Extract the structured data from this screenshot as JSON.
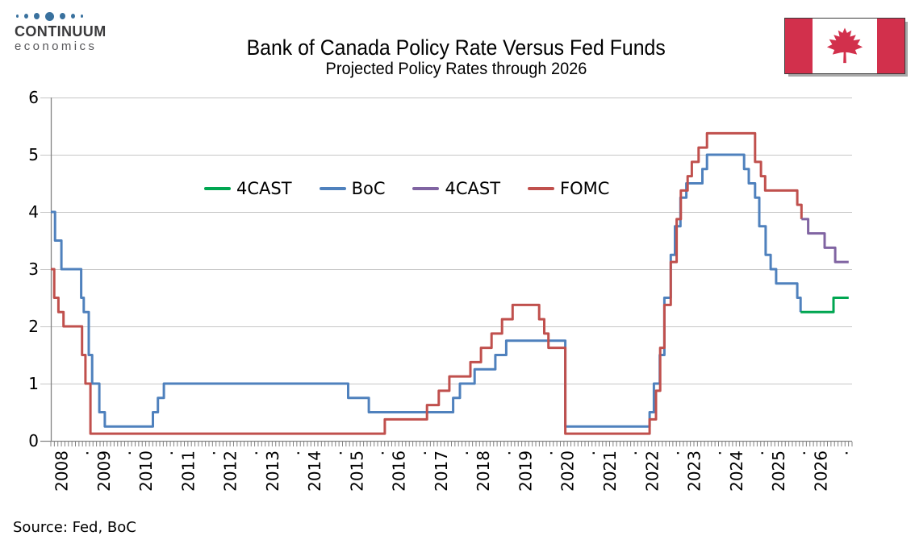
{
  "logo": {
    "name": "CONTINUUM",
    "tagline": "economics"
  },
  "header": {
    "title": "Bank of Canada Policy Rate Versus Fed Funds",
    "subtitle": "Projected Policy Rates through 2026"
  },
  "flag": {
    "country": "Canada"
  },
  "source_note": "Source: Fed, BoC",
  "chart_data": {
    "type": "line",
    "title": "Bank of Canada Policy Rate Versus Fed Funds",
    "subtitle": "Projected Policy Rates through 2026",
    "xlabel": "",
    "ylabel": "",
    "ylim": [
      0,
      6
    ],
    "yticks": [
      0,
      1,
      2,
      3,
      4,
      5,
      6
    ],
    "x_domain": [
      2008,
      2027
    ],
    "x_year_labels": [
      "2008",
      "2009",
      "2010",
      "2011",
      "2012",
      "2013",
      "2014",
      "2015",
      "2016",
      "2017",
      "2018",
      "2019",
      "2020",
      "2021",
      "2022",
      "2023",
      "2024",
      "2025",
      "2026"
    ],
    "x_minor_tick": "monthly",
    "grid": true,
    "legend_position": "inside-top-left",
    "legend": [
      {
        "label": "4CAST",
        "series": "boc_4cast",
        "color": "#00a651"
      },
      {
        "label": "BoC",
        "series": "boc",
        "color": "#4f81bd"
      },
      {
        "label": "4CAST",
        "series": "fomc_4cast",
        "color": "#8064a2"
      },
      {
        "label": "FOMC",
        "series": "fomc",
        "color": "#c0504d"
      }
    ],
    "series": [
      {
        "key": "boc",
        "name": "BoC",
        "color": "#4f81bd",
        "style": "step",
        "points": [
          [
            2008.0,
            4.0
          ],
          [
            2008.1,
            3.5
          ],
          [
            2008.25,
            3.0
          ],
          [
            2008.72,
            2.5
          ],
          [
            2008.78,
            2.25
          ],
          [
            2008.9,
            1.5
          ],
          [
            2008.98,
            1.0
          ],
          [
            2009.15,
            0.5
          ],
          [
            2009.28,
            0.25
          ],
          [
            2010.42,
            0.5
          ],
          [
            2010.54,
            0.75
          ],
          [
            2010.68,
            1.0
          ],
          [
            2015.05,
            0.75
          ],
          [
            2015.54,
            0.5
          ],
          [
            2017.54,
            0.75
          ],
          [
            2017.7,
            1.0
          ],
          [
            2018.05,
            1.25
          ],
          [
            2018.54,
            1.5
          ],
          [
            2018.8,
            1.75
          ],
          [
            2020.2,
            0.25
          ],
          [
            2022.2,
            0.5
          ],
          [
            2022.3,
            1.0
          ],
          [
            2022.44,
            1.5
          ],
          [
            2022.55,
            2.5
          ],
          [
            2022.7,
            3.25
          ],
          [
            2022.8,
            3.75
          ],
          [
            2022.93,
            4.25
          ],
          [
            2023.07,
            4.5
          ],
          [
            2023.45,
            4.75
          ],
          [
            2023.56,
            5.0
          ],
          [
            2024.44,
            4.75
          ],
          [
            2024.55,
            4.5
          ],
          [
            2024.7,
            4.25
          ],
          [
            2024.8,
            3.75
          ],
          [
            2024.95,
            3.25
          ],
          [
            2025.07,
            3.0
          ],
          [
            2025.2,
            2.75
          ],
          [
            2025.7,
            2.5
          ],
          [
            2025.78,
            2.25
          ]
        ]
      },
      {
        "key": "fomc",
        "name": "FOMC",
        "color": "#c0504d",
        "style": "step",
        "points": [
          [
            2008.0,
            3.0
          ],
          [
            2008.08,
            2.5
          ],
          [
            2008.18,
            2.25
          ],
          [
            2008.3,
            2.0
          ],
          [
            2008.74,
            1.5
          ],
          [
            2008.82,
            1.0
          ],
          [
            2008.94,
            0.125
          ],
          [
            2015.92,
            0.375
          ],
          [
            2016.92,
            0.625
          ],
          [
            2017.2,
            0.875
          ],
          [
            2017.45,
            1.125
          ],
          [
            2017.95,
            1.375
          ],
          [
            2018.2,
            1.625
          ],
          [
            2018.45,
            1.875
          ],
          [
            2018.7,
            2.125
          ],
          [
            2018.95,
            2.375
          ],
          [
            2019.58,
            2.125
          ],
          [
            2019.7,
            1.875
          ],
          [
            2019.8,
            1.625
          ],
          [
            2020.2,
            0.125
          ],
          [
            2022.2,
            0.375
          ],
          [
            2022.35,
            0.875
          ],
          [
            2022.45,
            1.625
          ],
          [
            2022.55,
            2.375
          ],
          [
            2022.7,
            3.125
          ],
          [
            2022.84,
            3.875
          ],
          [
            2022.94,
            4.375
          ],
          [
            2023.1,
            4.625
          ],
          [
            2023.2,
            4.875
          ],
          [
            2023.36,
            5.125
          ],
          [
            2023.56,
            5.375
          ],
          [
            2024.7,
            4.875
          ],
          [
            2024.84,
            4.625
          ],
          [
            2024.94,
            4.375
          ],
          [
            2025.7,
            4.125
          ],
          [
            2025.8,
            3.875
          ]
        ]
      },
      {
        "key": "fomc_4cast",
        "name": "4CAST (Fed projection)",
        "color": "#8064a2",
        "style": "step",
        "points": [
          [
            2025.8,
            3.875
          ],
          [
            2025.96,
            3.625
          ],
          [
            2026.35,
            3.375
          ],
          [
            2026.6,
            3.125
          ],
          [
            2026.92,
            3.125
          ]
        ]
      },
      {
        "key": "boc_4cast",
        "name": "4CAST (BoC projection)",
        "color": "#00a651",
        "style": "step",
        "points": [
          [
            2025.78,
            2.25
          ],
          [
            2026.45,
            2.25
          ],
          [
            2026.56,
            2.5
          ],
          [
            2026.92,
            2.5
          ]
        ]
      }
    ],
    "axis_colors": {
      "grid": "#c6c6c6",
      "axis": "#848484",
      "tick": "#848484",
      "label": "#000000"
    },
    "source": "Source: Fed, BoC"
  }
}
